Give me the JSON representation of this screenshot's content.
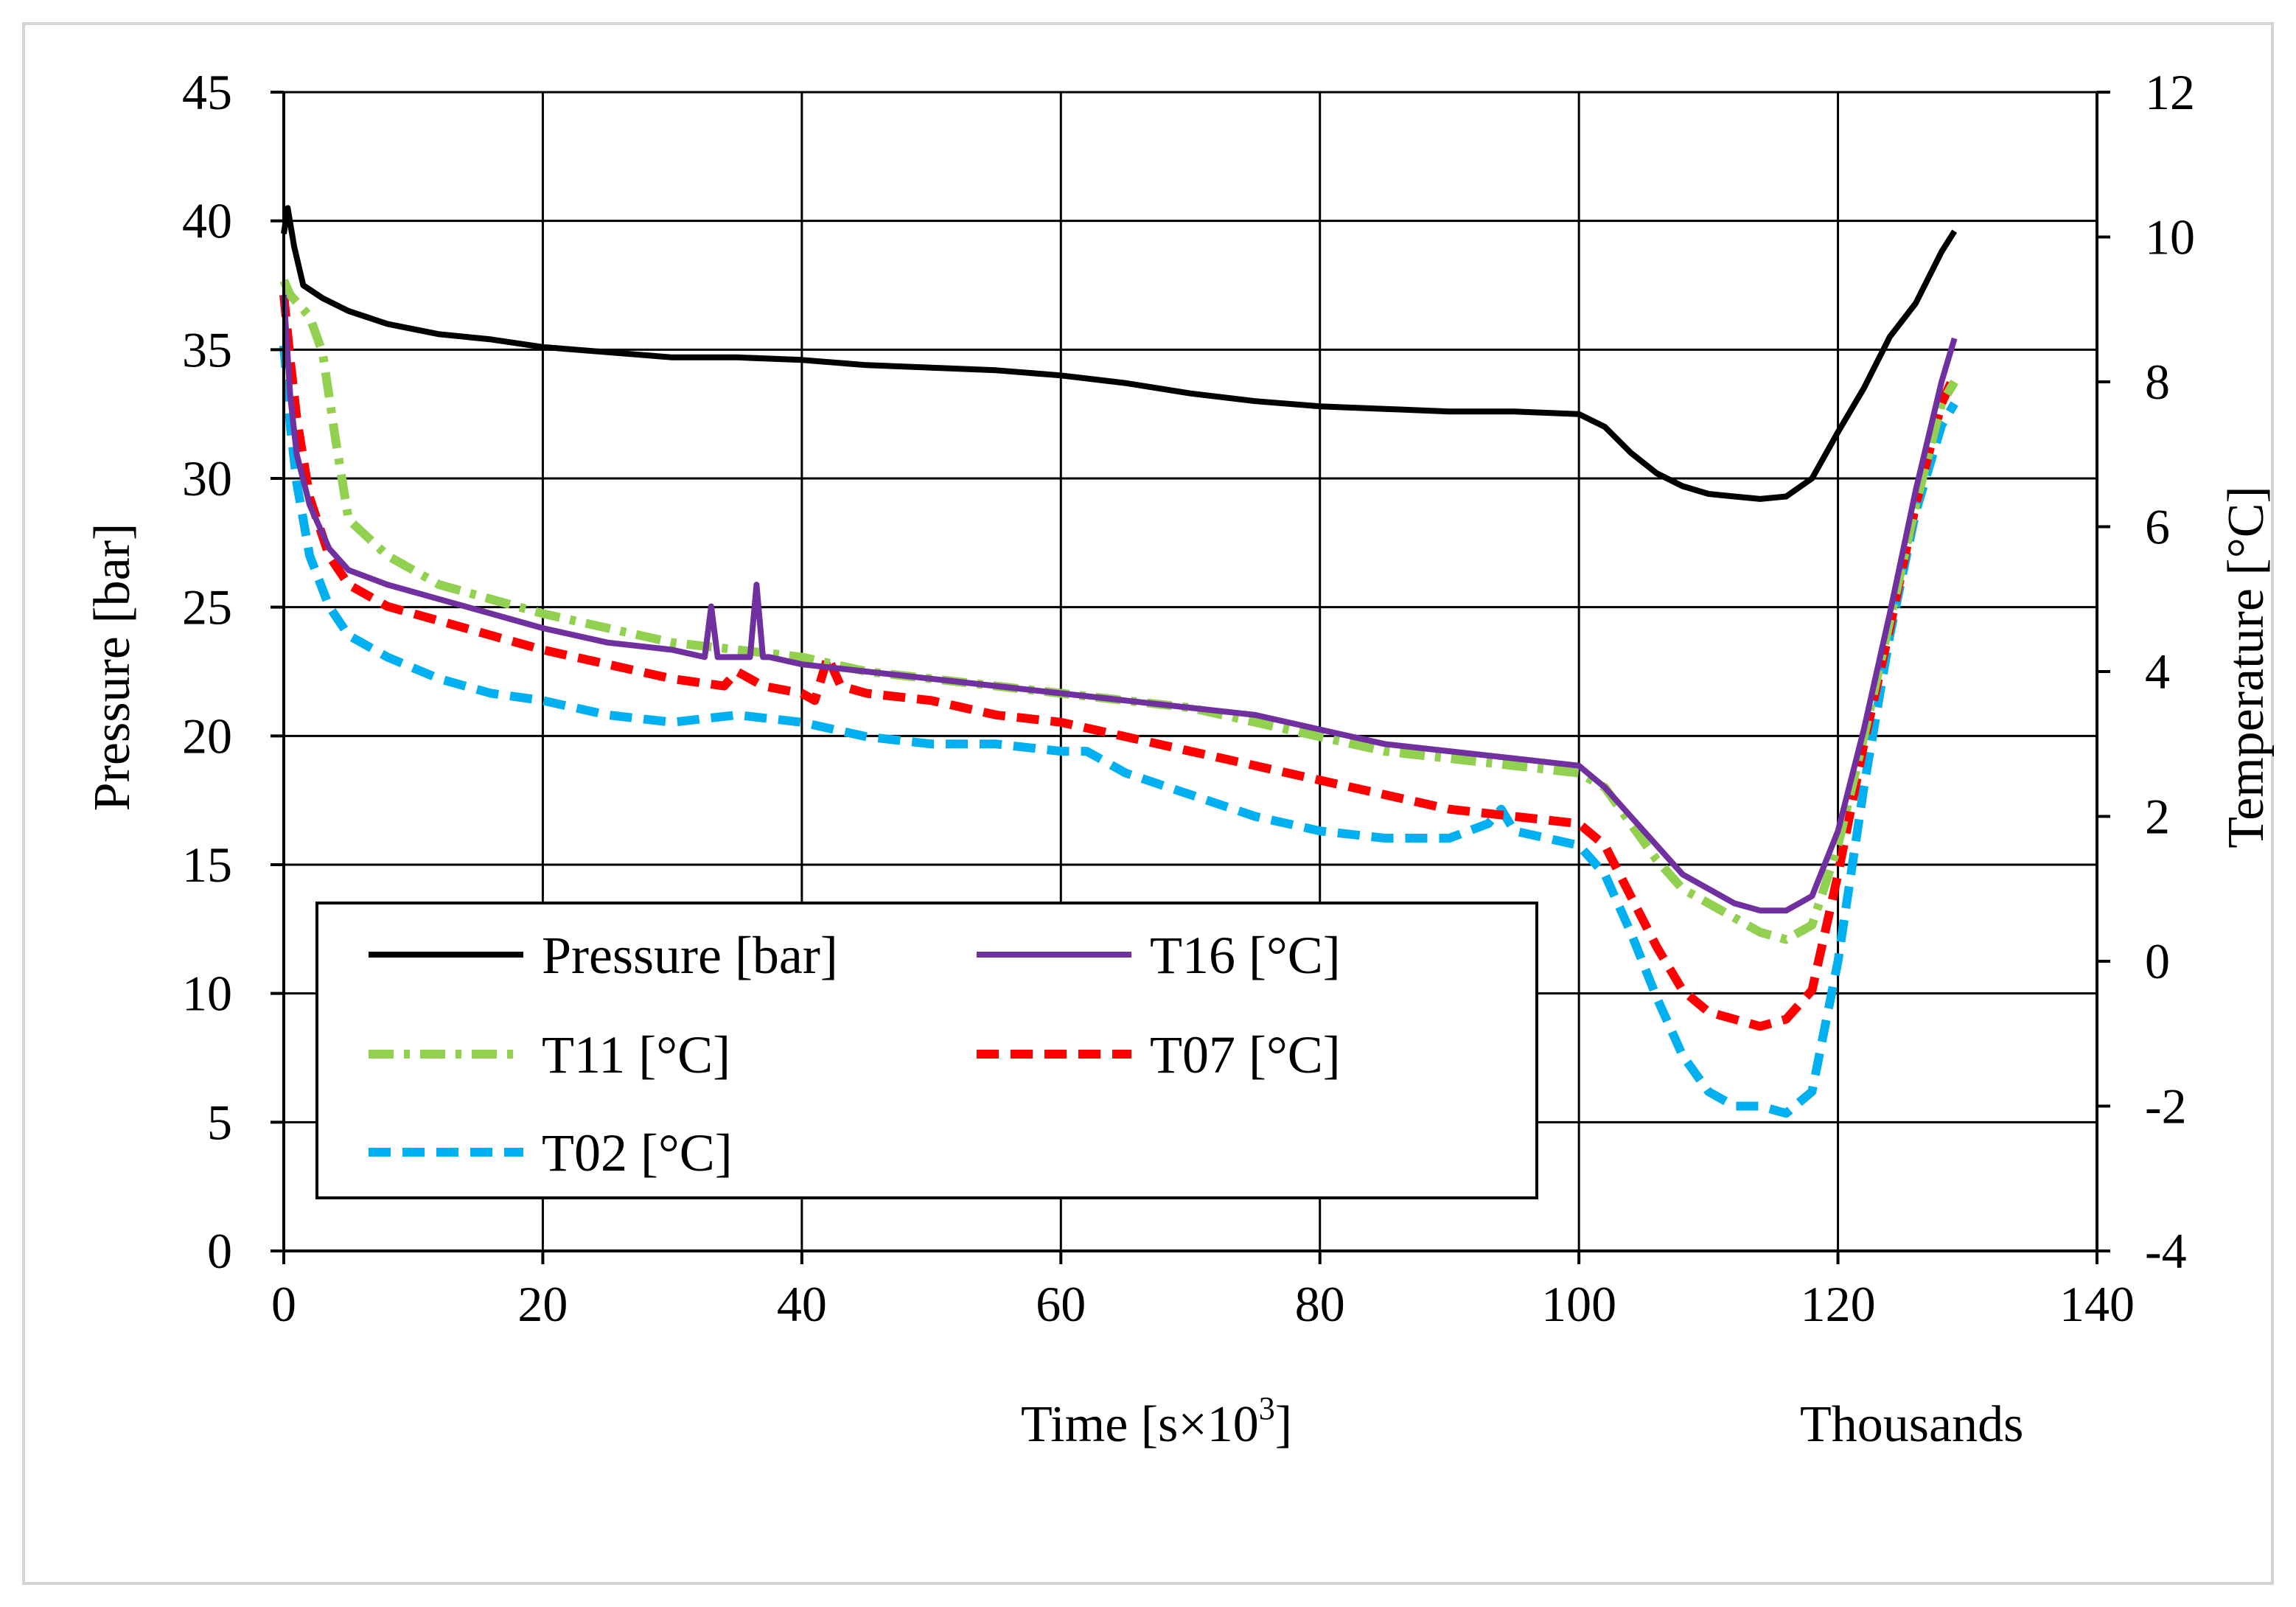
{
  "chart_data": {
    "type": "line",
    "xlabel": "Time [s×10³]",
    "xlabel_main": "Time [s×10",
    "xlabel_sup": "3",
    "xlabel_end": "]",
    "x_unit_label": "Thousands",
    "ylabel_left": "Pressure [bar]",
    "ylabel_right": "Temperature [°C]",
    "xlim": [
      0,
      140
    ],
    "ylim_left": [
      0,
      45
    ],
    "ylim_right": [
      -4,
      12
    ],
    "x_ticks": [
      0,
      20,
      40,
      60,
      80,
      100,
      120,
      140
    ],
    "y_left_ticks": [
      0,
      5,
      10,
      15,
      20,
      25,
      30,
      35,
      40,
      45
    ],
    "y_right_ticks": [
      -4,
      -2,
      0,
      2,
      4,
      6,
      8,
      10,
      12
    ],
    "grid": true,
    "legend_position": "bottom-left",
    "series": [
      {
        "name": "Pressure [bar]",
        "axis": "left",
        "color": "#000000",
        "dash": "solid",
        "x": [
          0,
          0.3,
          0.8,
          1.5,
          3,
          5,
          8,
          12,
          16,
          20,
          25,
          30,
          35,
          40,
          45,
          50,
          55,
          60,
          65,
          70,
          75,
          80,
          85,
          90,
          95,
          100,
          102,
          104,
          106,
          108,
          110,
          112,
          114,
          116,
          118,
          120,
          122,
          124,
          126,
          128,
          129
        ],
        "y": [
          39.5,
          40.5,
          39,
          37.5,
          37,
          36.5,
          36,
          35.6,
          35.4,
          35.1,
          34.9,
          34.7,
          34.7,
          34.6,
          34.4,
          34.3,
          34.2,
          34.0,
          33.7,
          33.3,
          33.0,
          32.8,
          32.7,
          32.6,
          32.6,
          32.5,
          32.0,
          31.0,
          30.2,
          29.7,
          29.4,
          29.3,
          29.2,
          29.3,
          30.0,
          31.8,
          33.5,
          35.5,
          36.8,
          38.8,
          39.6
        ]
      },
      {
        "name": "T16 [°C]",
        "axis": "right",
        "color": "#7030a0",
        "dash": "solid",
        "x": [
          0,
          0.5,
          1,
          2,
          3.5,
          5,
          8,
          12,
          16,
          20,
          25,
          30,
          32.5,
          33,
          33.5,
          34,
          36,
          36.5,
          37,
          37.5,
          40,
          45,
          50,
          55,
          60,
          65,
          70,
          75,
          80,
          85,
          90,
          95,
          100,
          102,
          104,
          106,
          108,
          110,
          112,
          114,
          116,
          118,
          120,
          122,
          124,
          126,
          128,
          129
        ],
        "y": [
          9.2,
          7.8,
          7.0,
          6.3,
          5.7,
          5.4,
          5.2,
          5.0,
          4.8,
          4.6,
          4.4,
          4.3,
          4.2,
          4.9,
          4.2,
          4.2,
          4.2,
          5.2,
          4.2,
          4.2,
          4.1,
          4.0,
          3.9,
          3.8,
          3.7,
          3.6,
          3.5,
          3.4,
          3.2,
          3.0,
          2.9,
          2.8,
          2.7,
          2.4,
          2.0,
          1.6,
          1.2,
          1.0,
          0.8,
          0.7,
          0.7,
          0.9,
          1.8,
          3.2,
          4.8,
          6.5,
          8.0,
          8.6
        ]
      },
      {
        "name": "T11 [°C]",
        "axis": "right",
        "color": "#92d050",
        "dash": "dashdot",
        "x": [
          0,
          0.5,
          1,
          2,
          3,
          4,
          5,
          8,
          12,
          16,
          20,
          25,
          30,
          35,
          40,
          45,
          50,
          55,
          60,
          65,
          70,
          75,
          80,
          85,
          90,
          95,
          100,
          102,
          104,
          106,
          108,
          110,
          112,
          114,
          116,
          118,
          120,
          122,
          124,
          126,
          128,
          129
        ],
        "y": [
          9.4,
          9.2,
          9.1,
          8.9,
          8.4,
          7.2,
          6.1,
          5.6,
          5.2,
          5.0,
          4.8,
          4.6,
          4.4,
          4.3,
          4.2,
          4.0,
          3.9,
          3.8,
          3.7,
          3.6,
          3.5,
          3.3,
          3.1,
          2.9,
          2.8,
          2.7,
          2.6,
          2.4,
          1.9,
          1.4,
          1.0,
          0.8,
          0.6,
          0.4,
          0.3,
          0.5,
          1.6,
          3.1,
          4.7,
          6.3,
          7.7,
          8.0
        ]
      },
      {
        "name": "T07 [°C]",
        "axis": "right",
        "color": "#ff0000",
        "dash": "dash",
        "x": [
          0,
          0.5,
          1,
          2,
          3.5,
          5,
          8,
          12,
          16,
          20,
          25,
          30,
          34,
          35,
          36,
          37,
          40,
          41,
          42,
          43,
          45,
          50,
          55,
          60,
          65,
          70,
          75,
          80,
          85,
          90,
          95,
          100,
          102,
          104,
          106,
          108,
          110,
          112,
          114,
          116,
          118,
          120,
          122,
          124,
          126,
          128,
          129
        ],
        "y": [
          9.2,
          8.3,
          7.5,
          6.4,
          5.6,
          5.2,
          4.9,
          4.7,
          4.5,
          4.3,
          4.1,
          3.9,
          3.8,
          4.0,
          3.9,
          3.8,
          3.7,
          3.6,
          4.2,
          3.8,
          3.7,
          3.6,
          3.4,
          3.3,
          3.1,
          2.9,
          2.7,
          2.5,
          2.3,
          2.1,
          2.0,
          1.9,
          1.6,
          0.9,
          0.2,
          -0.4,
          -0.7,
          -0.8,
          -0.9,
          -0.8,
          -0.4,
          1.2,
          3.0,
          4.6,
          6.3,
          7.7,
          8.1
        ]
      },
      {
        "name": "T02 [°C]",
        "axis": "right",
        "color": "#00b0f0",
        "dash": "dash",
        "x": [
          0,
          0.5,
          1,
          2,
          3.5,
          5,
          8,
          12,
          16,
          20,
          25,
          30,
          35,
          40,
          45,
          50,
          55,
          60,
          62,
          65,
          70,
          75,
          80,
          85,
          90,
          93,
          94,
          95,
          100,
          102,
          104,
          106,
          108,
          110,
          112,
          114,
          116,
          118,
          120,
          122,
          124,
          126,
          128,
          129
        ],
        "y": [
          8.5,
          7.4,
          6.6,
          5.6,
          4.9,
          4.5,
          4.2,
          3.9,
          3.7,
          3.6,
          3.4,
          3.3,
          3.4,
          3.3,
          3.1,
          3.0,
          3.0,
          2.9,
          2.9,
          2.6,
          2.3,
          2.0,
          1.8,
          1.7,
          1.7,
          1.9,
          2.1,
          1.8,
          1.6,
          1.2,
          0.4,
          -0.5,
          -1.3,
          -1.8,
          -2.0,
          -2.0,
          -2.1,
          -1.8,
          0.0,
          2.4,
          4.5,
          6.2,
          7.4,
          7.7
        ]
      }
    ]
  }
}
